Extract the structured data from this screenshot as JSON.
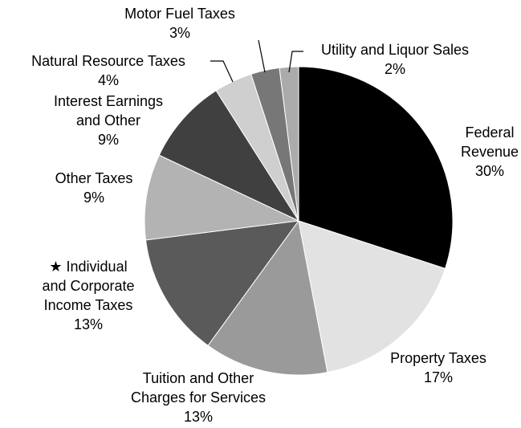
{
  "chart_data": {
    "type": "pie",
    "categories": [
      "Federal Revenue",
      "Property Taxes",
      "Tuition and Other Charges for Services",
      "★ Individual and Corporate Income Taxes",
      "Other Taxes",
      "Interest Earnings and Other",
      "Natural Resource Taxes",
      "Motor Fuel Taxes",
      "Utility and Liquor Sales"
    ],
    "values": [
      30,
      17,
      13,
      13,
      9,
      9,
      4,
      3,
      2
    ],
    "value_labels": [
      "30%",
      "17%",
      "13%",
      "13%",
      "9%",
      "9%",
      "4%",
      "3%",
      "2%"
    ],
    "colors": [
      "#000000",
      "#e2e2e2",
      "#9a9a9a",
      "#5a5a5a",
      "#b3b3b3",
      "#404040",
      "#cfcfcf",
      "#777777",
      "#ababab"
    ]
  }
}
